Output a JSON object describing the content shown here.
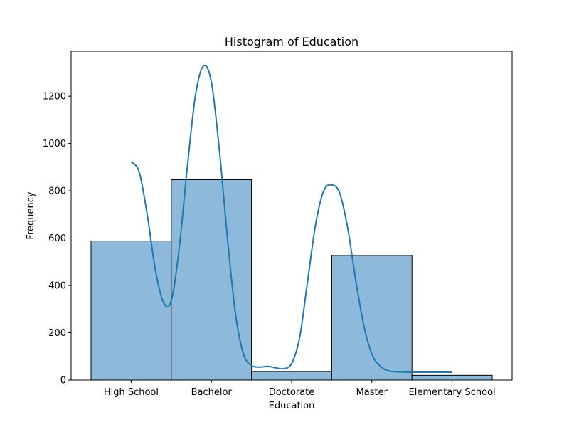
{
  "chart_data": {
    "type": "bar",
    "title": "Histogram of Education",
    "xlabel": "Education",
    "ylabel": "Frequency",
    "categories": [
      "High School",
      "Bachelor",
      "Doctorate",
      "Master",
      "Elementary School"
    ],
    "values": [
      588,
      847,
      36,
      527,
      20
    ],
    "ylim": [
      0,
      1390
    ],
    "yticks": [
      0,
      200,
      400,
      600,
      800,
      1000,
      1200
    ],
    "kde_curve": {
      "x": [
        0.0,
        0.1,
        0.2,
        0.3,
        0.4,
        0.5,
        0.6,
        0.7,
        0.8,
        0.9,
        1.0,
        1.1,
        1.2,
        1.3,
        1.4,
        1.5,
        1.6,
        1.7,
        1.8,
        1.9,
        2.0,
        2.1,
        2.2,
        2.3,
        2.4,
        2.5,
        2.6,
        2.7,
        2.8,
        2.9,
        3.0,
        3.1,
        3.2,
        3.3,
        3.4,
        3.5,
        3.6,
        3.7,
        3.8,
        3.9,
        4.0
      ],
      "y": [
        922,
        880,
        700,
        470,
        330,
        335,
        560,
        900,
        1200,
        1327,
        1260,
        970,
        600,
        280,
        110,
        62,
        55,
        58,
        52,
        48,
        70,
        180,
        420,
        660,
        800,
        825,
        790,
        640,
        420,
        230,
        110,
        60,
        40,
        35,
        34,
        33,
        33,
        33,
        33,
        33,
        33
      ]
    },
    "colors": {
      "bar_fill": "#8db9da",
      "bar_edge": "#000000",
      "kde_line": "#1f77b4"
    },
    "grid": false,
    "legend": "none"
  }
}
